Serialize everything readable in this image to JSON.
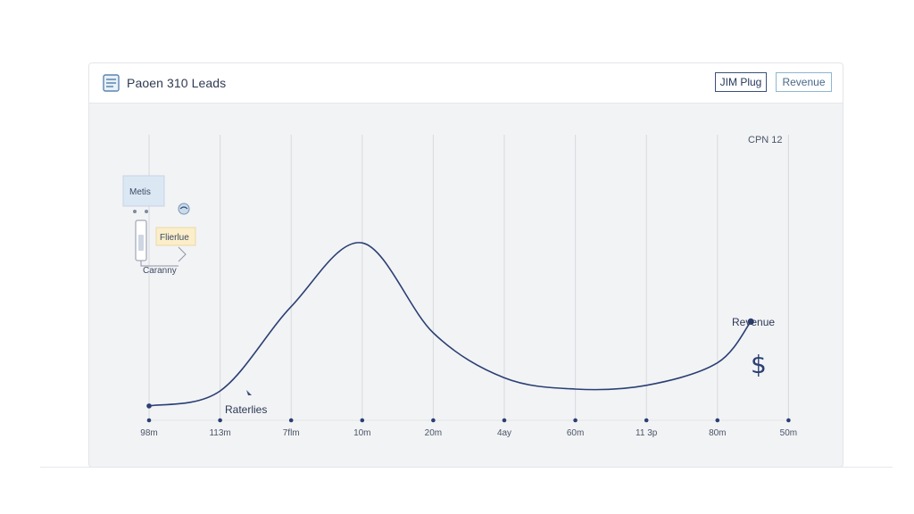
{
  "header": {
    "title": "Paoen 310 Leads",
    "buttons": [
      {
        "label": "JIM Plug"
      },
      {
        "label": "Revenue"
      }
    ]
  },
  "legend": {
    "box_label": "Metis",
    "filter_label": "Flierlue",
    "caption": "Caranny"
  },
  "corner_label": "CPN 12",
  "annotations": {
    "start_label": "Raterlies",
    "end_label": "Revenue",
    "currency_symbol": "$"
  },
  "colors": {
    "line": "#2b3f73",
    "grid": "#d7dade",
    "card_bg": "#f2f3f5",
    "legend_box": "#dbe7f3",
    "filter_box": "#fbeec9"
  },
  "chart_data": {
    "type": "line",
    "title": "",
    "xlabel": "",
    "ylabel": "",
    "categories": [
      "98m",
      "113m",
      "7flm",
      "10m",
      "20m",
      "4ay",
      "60m",
      "11 3p",
      "80m",
      "50m"
    ],
    "grid": true,
    "series": [
      {
        "name": "",
        "smooth": true,
        "points": [
          {
            "x": "98m",
            "y": 0.5
          },
          {
            "x": "113m",
            "y": 4.5
          },
          {
            "x": "7flm",
            "y": 27
          },
          {
            "x": "10m",
            "y": 44
          },
          {
            "x": "20m",
            "y": 20
          },
          {
            "x": "4ay",
            "y": 8
          },
          {
            "x": "60m",
            "y": 5
          },
          {
            "x": "11 3p",
            "y": 6
          },
          {
            "x": "80m",
            "y": 12
          },
          {
            "x": "80m-50m",
            "y": 23
          }
        ],
        "end_point_y": 23
      }
    ],
    "ylim": [
      0,
      60
    ]
  }
}
